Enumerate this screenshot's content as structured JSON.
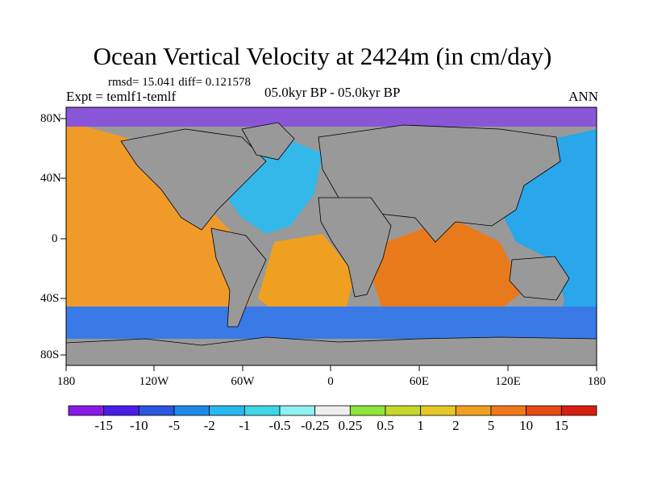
{
  "title": "Ocean Vertical Velocity at 2424m (in cm/day)",
  "stats": "rmsd= 15.041  diff= 0.121578",
  "expt": "Expt = temlf1-temlf",
  "period": "05.0kyr BP - 05.0kyr BP",
  "season": "ANN",
  "lat_labels": [
    "80N",
    "40N",
    "0",
    "40S",
    "80S"
  ],
  "lon_labels": [
    "180",
    "120W",
    "60W",
    "0",
    "60E",
    "120E",
    "180"
  ],
  "colorbar": {
    "labels": [
      "-15",
      "-10",
      "-5",
      "-2",
      "-1",
      "-0.5",
      "-0.25",
      "0.25",
      "0.5",
      "1",
      "2",
      "5",
      "10",
      "15"
    ],
    "colors": [
      "#8a1ae8",
      "#4a1ee8",
      "#2a56e0",
      "#1e8ae8",
      "#28b8f0",
      "#3ed6e6",
      "#8ef0f0",
      "#eeeeee",
      "#8ee63a",
      "#c6d82a",
      "#e6c826",
      "#f0a020",
      "#f07818",
      "#e84a14",
      "#d81e10"
    ]
  },
  "colors": {
    "land": "#999999",
    "background": "#ffffff"
  }
}
